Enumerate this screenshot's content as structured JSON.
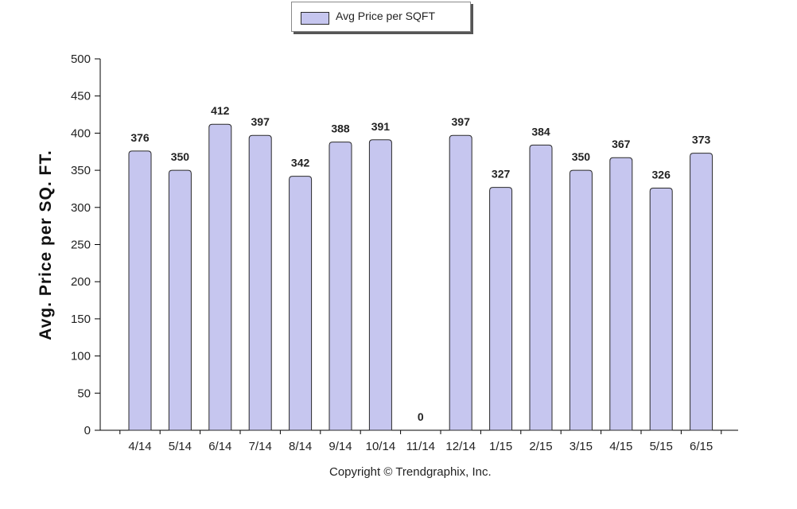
{
  "legend": {
    "label": "Avg Price per SQFT"
  },
  "copyright": "Copyright © Trendgraphix, Inc.",
  "colors": {
    "bar_fill": "#c6c6ef",
    "bar_stroke": "#2a2a2a",
    "axis": "#000000"
  },
  "chart_data": {
    "type": "bar",
    "title": "",
    "xlabel": "",
    "ylabel": "Avg. Price per SQ. FT.",
    "ylim": [
      0,
      500
    ],
    "yticks": [
      0,
      50,
      100,
      150,
      200,
      250,
      300,
      350,
      400,
      450,
      500
    ],
    "grid": false,
    "legend_position": "top",
    "categories": [
      "4/14",
      "5/14",
      "6/14",
      "7/14",
      "8/14",
      "9/14",
      "10/14",
      "11/14",
      "12/14",
      "1/15",
      "2/15",
      "3/15",
      "4/15",
      "5/15",
      "6/15"
    ],
    "series": [
      {
        "name": "Avg Price per SQFT",
        "values": [
          376,
          350,
          412,
          397,
          342,
          388,
          391,
          0,
          397,
          327,
          384,
          350,
          367,
          326,
          373
        ]
      }
    ]
  }
}
